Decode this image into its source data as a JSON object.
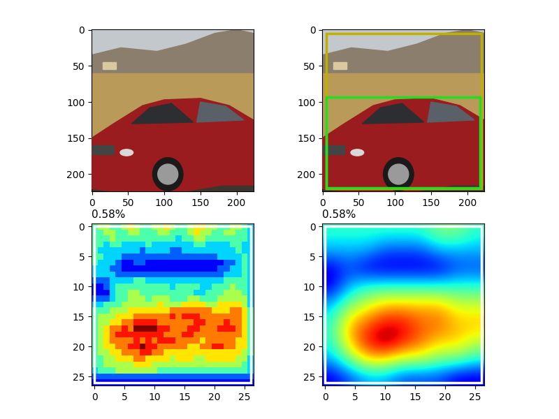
{
  "chart_data": [
    {
      "type": "image",
      "xlim": [
        -0.5,
        223.5
      ],
      "ylim": [
        223.5,
        -0.5
      ],
      "xticks": [
        0,
        50,
        100,
        150,
        200
      ],
      "yticks": [
        0,
        50,
        100,
        150,
        200
      ]
    },
    {
      "type": "image",
      "xlim": [
        -0.5,
        223.5
      ],
      "ylim": [
        223.5,
        -0.5
      ],
      "xticks": [
        0,
        50,
        100,
        150,
        200
      ],
      "yticks": [
        0,
        50,
        100,
        150,
        200
      ],
      "boxes": [
        {
          "color": "#bfb000",
          "x": [
            5,
            220
          ],
          "y": [
            5,
            220
          ]
        },
        {
          "color": "#22dd22",
          "x": [
            5,
            218
          ],
          "y": [
            93,
            219
          ]
        }
      ]
    },
    {
      "type": "heatmap",
      "title": "0.58%",
      "xlim": [
        -0.5,
        26.5
      ],
      "ylim": [
        26.5,
        -0.5
      ],
      "xticks": [
        0,
        5,
        10,
        15,
        20,
        25
      ],
      "yticks": [
        0,
        5,
        10,
        15,
        20,
        25
      ],
      "zlim": [
        0,
        9
      ],
      "boxes": [
        {
          "color": "#ffffff",
          "x": [
            0,
            26
          ],
          "y": [
            0,
            26
          ]
        }
      ],
      "cells": [
        [
          4,
          5,
          5,
          4,
          4,
          5,
          6,
          5,
          4,
          4,
          5,
          5,
          6,
          5,
          4,
          4,
          5,
          6,
          6,
          5,
          5,
          4,
          4,
          5,
          5,
          4,
          3
        ],
        [
          4,
          4,
          5,
          5,
          4,
          4,
          5,
          5,
          4,
          4,
          4,
          5,
          5,
          4,
          4,
          4,
          5,
          6,
          5,
          5,
          4,
          4,
          5,
          5,
          4,
          4,
          3
        ],
        [
          4,
          4,
          4,
          5,
          4,
          4,
          4,
          4,
          4,
          4,
          4,
          4,
          4,
          4,
          3,
          4,
          4,
          5,
          5,
          4,
          4,
          4,
          4,
          4,
          4,
          4,
          3
        ],
        [
          4,
          4,
          3,
          4,
          4,
          3,
          3,
          3,
          3,
          4,
          3,
          3,
          3,
          3,
          3,
          3,
          3,
          4,
          4,
          3,
          3,
          3,
          3,
          4,
          4,
          3,
          3
        ],
        [
          4,
          3,
          3,
          3,
          3,
          3,
          3,
          3,
          2,
          3,
          3,
          3,
          3,
          2,
          2,
          3,
          3,
          3,
          3,
          3,
          3,
          3,
          3,
          3,
          4,
          3,
          3
        ],
        [
          4,
          4,
          3,
          3,
          3,
          2,
          2,
          2,
          2,
          2,
          2,
          2,
          2,
          2,
          2,
          2,
          2,
          2,
          2,
          2,
          2,
          3,
          3,
          3,
          3,
          4,
          3
        ],
        [
          4,
          3,
          3,
          3,
          2,
          1,
          1,
          2,
          2,
          1,
          1,
          1,
          1,
          1,
          1,
          1,
          1,
          1,
          1,
          1,
          1,
          1,
          2,
          2,
          3,
          4,
          3
        ],
        [
          3,
          3,
          3,
          2,
          2,
          1,
          1,
          1,
          1,
          1,
          1,
          1,
          1,
          1,
          1,
          1,
          1,
          1,
          1,
          1,
          1,
          2,
          2,
          3,
          3,
          4,
          3
        ],
        [
          3,
          3,
          3,
          3,
          2,
          2,
          2,
          2,
          2,
          2,
          2,
          2,
          2,
          2,
          2,
          2,
          2,
          2,
          2,
          2,
          2,
          2,
          3,
          3,
          3,
          4,
          3
        ],
        [
          2,
          2,
          2,
          3,
          3,
          3,
          3,
          4,
          4,
          3,
          3,
          3,
          3,
          3,
          3,
          3,
          3,
          3,
          3,
          3,
          3,
          3,
          4,
          4,
          4,
          4,
          3
        ],
        [
          1,
          1,
          2,
          3,
          4,
          4,
          4,
          4,
          4,
          4,
          4,
          4,
          4,
          3,
          4,
          4,
          4,
          4,
          3,
          3,
          4,
          4,
          4,
          5,
          4,
          4,
          3
        ],
        [
          1,
          1,
          1,
          3,
          4,
          4,
          5,
          5,
          4,
          4,
          4,
          4,
          4,
          4,
          4,
          4,
          4,
          3,
          3,
          4,
          4,
          4,
          5,
          5,
          5,
          4,
          3
        ],
        [
          2,
          2,
          2,
          3,
          4,
          4,
          5,
          5,
          5,
          4,
          5,
          5,
          5,
          4,
          4,
          4,
          5,
          5,
          4,
          4,
          4,
          5,
          5,
          5,
          5,
          5,
          3
        ],
        [
          3,
          3,
          4,
          4,
          4,
          5,
          5,
          5,
          5,
          5,
          5,
          6,
          5,
          5,
          5,
          6,
          6,
          6,
          6,
          5,
          5,
          6,
          6,
          6,
          6,
          5,
          3
        ],
        [
          4,
          4,
          4,
          5,
          5,
          5,
          6,
          6,
          6,
          6,
          6,
          6,
          6,
          7,
          7,
          7,
          7,
          7,
          7,
          7,
          6,
          6,
          6,
          7,
          7,
          6,
          4
        ],
        [
          4,
          5,
          5,
          5,
          6,
          6,
          6,
          7,
          7,
          7,
          7,
          7,
          7,
          8,
          7,
          8,
          8,
          8,
          7,
          7,
          7,
          7,
          7,
          7,
          7,
          6,
          4
        ],
        [
          4,
          5,
          5,
          6,
          6,
          7,
          7,
          8,
          8,
          8,
          8,
          7,
          7,
          7,
          7,
          7,
          7,
          8,
          8,
          7,
          7,
          7,
          8,
          7,
          7,
          6,
          4
        ],
        [
          4,
          5,
          6,
          7,
          7,
          8,
          7,
          9,
          9,
          9,
          9,
          8,
          8,
          7,
          7,
          7,
          8,
          8,
          7,
          7,
          7,
          8,
          8,
          8,
          7,
          6,
          4
        ],
        [
          4,
          5,
          6,
          7,
          8,
          8,
          8,
          8,
          8,
          8,
          8,
          8,
          7,
          7,
          7,
          8,
          8,
          7,
          7,
          7,
          7,
          7,
          7,
          7,
          7,
          6,
          4
        ],
        [
          4,
          5,
          6,
          7,
          7,
          7,
          7,
          8,
          7,
          8,
          7,
          8,
          8,
          8,
          7,
          7,
          7,
          7,
          6,
          7,
          7,
          7,
          7,
          7,
          6,
          6,
          4
        ],
        [
          4,
          5,
          6,
          6,
          7,
          7,
          8,
          8,
          9,
          8,
          8,
          7,
          7,
          7,
          7,
          7,
          6,
          6,
          7,
          7,
          8,
          8,
          7,
          7,
          6,
          6,
          4
        ],
        [
          4,
          5,
          5,
          6,
          6,
          7,
          7,
          7,
          8,
          8,
          7,
          7,
          6,
          6,
          6,
          6,
          6,
          6,
          6,
          6,
          6,
          6,
          6,
          6,
          6,
          5,
          4
        ],
        [
          4,
          4,
          5,
          5,
          6,
          6,
          6,
          7,
          7,
          6,
          6,
          6,
          6,
          5,
          6,
          6,
          6,
          5,
          5,
          6,
          6,
          6,
          6,
          6,
          5,
          5,
          3
        ],
        [
          4,
          4,
          5,
          5,
          5,
          5,
          5,
          6,
          6,
          6,
          5,
          5,
          5,
          5,
          5,
          5,
          5,
          5,
          5,
          5,
          5,
          5,
          5,
          5,
          5,
          4,
          3
        ],
        [
          3,
          4,
          4,
          4,
          5,
          5,
          5,
          5,
          5,
          5,
          5,
          4,
          4,
          4,
          4,
          4,
          4,
          4,
          4,
          4,
          4,
          4,
          4,
          4,
          4,
          4,
          3
        ],
        [
          2,
          2,
          2,
          2,
          2,
          2,
          2,
          2,
          2,
          2,
          2,
          2,
          2,
          2,
          2,
          2,
          2,
          2,
          2,
          2,
          2,
          2,
          2,
          2,
          2,
          2,
          2
        ],
        [
          1,
          1,
          1,
          1,
          1,
          1,
          1,
          1,
          1,
          1,
          1,
          1,
          1,
          1,
          1,
          1,
          1,
          1,
          1,
          1,
          1,
          1,
          1,
          1,
          1,
          1,
          1
        ]
      ]
    },
    {
      "type": "heatmap",
      "title": "0.58%",
      "xlim": [
        -0.5,
        26.5
      ],
      "ylim": [
        26.5,
        -0.5
      ],
      "xticks": [
        0,
        5,
        10,
        15,
        20,
        25
      ],
      "yticks": [
        0,
        5,
        10,
        15,
        20,
        25
      ],
      "zlim": [
        0,
        10
      ],
      "boxes": [
        {
          "color": "#ffffff",
          "x": [
            0,
            26
          ],
          "y": [
            0,
            26
          ]
        }
      ],
      "cells": [
        [
          4,
          4,
          4,
          4,
          4,
          4,
          5,
          5,
          4
        ],
        [
          3,
          3,
          3,
          2,
          2,
          2,
          3,
          3,
          3
        ],
        [
          1,
          2,
          1,
          1,
          1,
          1,
          1,
          2,
          2
        ],
        [
          1,
          3,
          4,
          4,
          4,
          4,
          4,
          4,
          4
        ],
        [
          3,
          5,
          6,
          7,
          7,
          7,
          7,
          6,
          6
        ],
        [
          4,
          7,
          8,
          9,
          9,
          8,
          8,
          7,
          7
        ],
        [
          4,
          7,
          9,
          10,
          9,
          8,
          7,
          7,
          6
        ],
        [
          3,
          5,
          7,
          7,
          6,
          6,
          5,
          5,
          4
        ],
        [
          1,
          2,
          3,
          3,
          2,
          2,
          2,
          1,
          1
        ]
      ]
    }
  ]
}
